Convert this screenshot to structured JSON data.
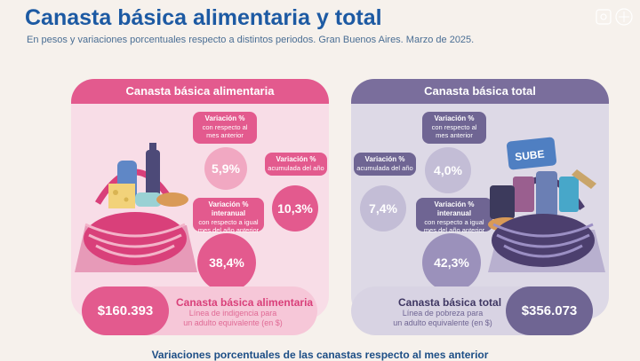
{
  "header": {
    "title": "Canasta básica alimentaria y total",
    "subtitle": "En pesos y variaciones porcentuales respecto a distintos periodos. Gran Buenos Aires. Marzo de 2025."
  },
  "left_panel": {
    "header": "Canasta básica alimentaria",
    "label_monthly_line1": "Variación %",
    "label_monthly_line2": "con respecto al",
    "label_monthly_line3": "mes anterior",
    "value_monthly": "5,9%",
    "label_annual_line1": "Variación %",
    "label_annual_line2": "acumulada del año",
    "value_annual": "10,3%",
    "label_interannual_line1": "Variación % interanual",
    "label_interannual_line2": "con respecto a igual",
    "label_interannual_line3": "mes del año anterior",
    "value_interannual": "38,4%",
    "amount": "$160.393",
    "footer_title": "Canasta básica alimentaria",
    "footer_desc_line1": "Línea de indigencia para",
    "footer_desc_line2": "un adulto equivalente (en $)"
  },
  "right_panel": {
    "header": "Canasta básica total",
    "label_monthly_line1": "Variación %",
    "label_monthly_line2": "con respecto al",
    "label_monthly_line3": "mes anterior",
    "value_monthly": "4,0%",
    "label_annual_line1": "Variación %",
    "label_annual_line2": "acumulada del año",
    "value_annual": "7,4%",
    "label_interannual_line1": "Variación % interanual",
    "label_interannual_line2": "con respecto a igual",
    "label_interannual_line3": "mes del año anterior",
    "value_interannual": "42,3%",
    "amount": "$356.073",
    "footer_title": "Canasta básica total",
    "footer_desc_line1": "Línea de pobreza para",
    "footer_desc_line2": "un adulto equivalente (en $)",
    "card_text": "SUBE"
  },
  "bottom": {
    "heading": "Variaciones porcentuales de las canastas respecto al mes anterior"
  },
  "colors": {
    "title": "#1d5aa3",
    "pink": "#e35a8e",
    "purple": "#6f6593",
    "background": "#f6f1ec"
  }
}
